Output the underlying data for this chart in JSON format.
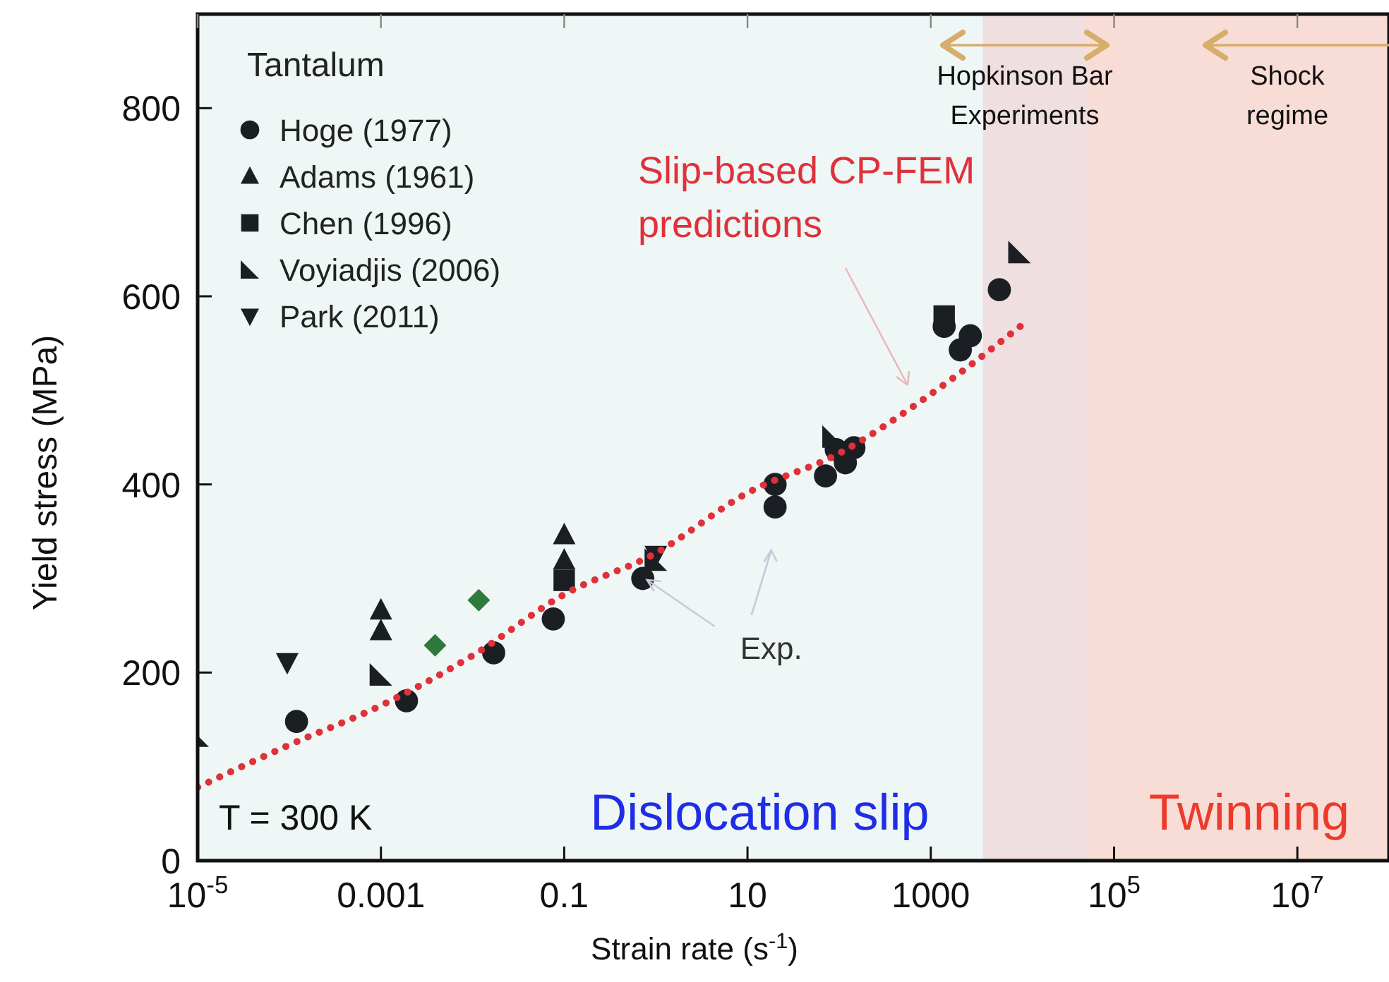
{
  "chart_data": {
    "type": "scatter",
    "xlabel": "Strain rate (s$^{-1}$)",
    "ylabel": "Yield stress (MPa)",
    "legend_title": "Tantalum",
    "log": "x",
    "xlim": [
      1e-05,
      100000000
    ],
    "ylim": [
      0,
      900
    ],
    "xticks": [
      {
        "value": 1e-05,
        "label": "10$^{-5}$"
      },
      0.001,
      0.1,
      10,
      1000,
      {
        "value": 100000,
        "label": "10$^{5}$"
      },
      {
        "value": 10000000,
        "label": "10$^{7}$"
      }
    ],
    "yticks": [
      0,
      200,
      400,
      600,
      800
    ],
    "grid": false,
    "legend": "top left",
    "series": [
      {
        "name": "Hoge (1977)",
        "color": "#1b1f24",
        "marker": "circle",
        "x": [
          0.00012,
          0.0019,
          0.017,
          0.076,
          0.72,
          20,
          20,
          71,
          93,
          117,
          145,
          1400,
          2700,
          2100,
          5600
        ],
        "values": [
          148,
          170,
          221,
          257,
          300,
          376,
          400,
          409,
          437,
          423,
          439,
          568,
          558,
          543,
          607
        ]
      },
      {
        "name": "Adams (1961)",
        "color": "#1b1f24",
        "marker": "triangle",
        "x": [
          0.001,
          0.001,
          0.1,
          0.1
        ],
        "values": [
          266,
          244,
          346,
          319
        ]
      },
      {
        "name": "Chen (1996)",
        "color": "#1b1f24",
        "marker": "square",
        "x": [
          0.1,
          1400
        ],
        "values": [
          298,
          579
        ]
      },
      {
        "name": "Voyiadjis (2006)",
        "color": "#1b1f24",
        "marker": "triangle-corner",
        "x": [
          1e-05,
          0.001,
          1.0,
          87,
          9300
        ],
        "values": [
          133,
          198,
          320,
          451,
          647
        ]
      },
      {
        "name": "Park (2011)",
        "color": "#1b1f24",
        "marker": "triangle-down",
        "x": [
          9.5e-05,
          1.0
        ],
        "values": [
          211,
          325
        ]
      },
      {
        "color": "#2e7a3c",
        "marker": "diamond",
        "x": [
          0.0039,
          0.0117
        ],
        "values": [
          229,
          277
        ]
      },
      {
        "name": "Slip-based CP-FEM predictions",
        "type": "line",
        "color": "#e0313a",
        "line_style": "dotted",
        "marker": "none",
        "x": [
          1e-05,
          0.0001,
          0.001,
          0.01,
          0.1,
          1,
          10,
          100,
          1000,
          11000
        ],
        "values": [
          78,
          123,
          165,
          218,
          283,
          327,
          391,
          433,
          496,
          573
        ]
      }
    ],
    "bands": [
      {
        "axis": "x",
        "from": 1e-05,
        "to": 3700,
        "label": "Dislocation slip",
        "color": "#eef7f6"
      },
      {
        "axis": "x",
        "from": 3700,
        "to": 100000000,
        "label": "Twinning",
        "color": "#f8ddd6"
      },
      {
        "axis": "x",
        "from": 3700,
        "to": 50000,
        "label": null,
        "color": "#efdfe0"
      }
    ],
    "annotations": [
      "Hopkinson Bar Experiments",
      "Shock regime",
      {
        "text": "Exp.",
        "x": 0.72,
        "y": 300
      },
      "T = 300 K"
    ]
  }
}
